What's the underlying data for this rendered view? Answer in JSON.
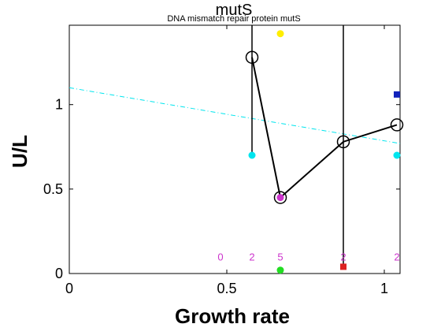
{
  "chart_data": {
    "type": "scatter",
    "title": "mutS",
    "subtitle": "DNA mismatch repair protein mutS",
    "xlabel": "Growth rate",
    "ylabel": "U/L",
    "xlim": [
      0,
      1.05
    ],
    "ylim": [
      0,
      1.47
    ],
    "x_ticks": [
      "0",
      "0.5",
      "1"
    ],
    "y_ticks": [
      "0",
      "0.5",
      "1"
    ],
    "grid": false,
    "mean_line": {
      "color": "#000000",
      "x": [
        0.58,
        0.67,
        0.87,
        1.04
      ],
      "y": [
        1.28,
        0.45,
        0.78,
        0.88
      ]
    },
    "trend_line": {
      "color": "#00e5ee",
      "style": "dash-dot",
      "x": [
        0.0,
        1.05
      ],
      "y": [
        1.1,
        0.77
      ]
    },
    "error_bars": [
      {
        "x": 0.58,
        "y_low": 0.7,
        "y_high": 1.47
      },
      {
        "x": 0.87,
        "y_low": 0.04,
        "y_high": 1.47
      }
    ],
    "points": [
      {
        "x": 0.58,
        "y": 0.7,
        "color": "#00e5ee",
        "shape": "circle"
      },
      {
        "x": 0.67,
        "y": 1.42,
        "color": "#ffee00",
        "shape": "circle"
      },
      {
        "x": 0.67,
        "y": 0.45,
        "color": "#cc33cc",
        "shape": "circle"
      },
      {
        "x": 0.67,
        "y": 0.02,
        "color": "#22dd22",
        "shape": "circle"
      },
      {
        "x": 0.87,
        "y": 0.04,
        "color": "#dd2222",
        "shape": "square"
      },
      {
        "x": 1.04,
        "y": 1.06,
        "color": "#1122bb",
        "shape": "square"
      },
      {
        "x": 1.04,
        "y": 0.7,
        "color": "#00e5ee",
        "shape": "circle"
      }
    ],
    "counts": {
      "color": "#cc33cc",
      "y": 0.1,
      "items": [
        {
          "x": 0.48,
          "label": "0"
        },
        {
          "x": 0.58,
          "label": "2"
        },
        {
          "x": 0.67,
          "label": "5"
        },
        {
          "x": 0.87,
          "label": "2"
        },
        {
          "x": 1.04,
          "label": "2"
        }
      ]
    }
  }
}
